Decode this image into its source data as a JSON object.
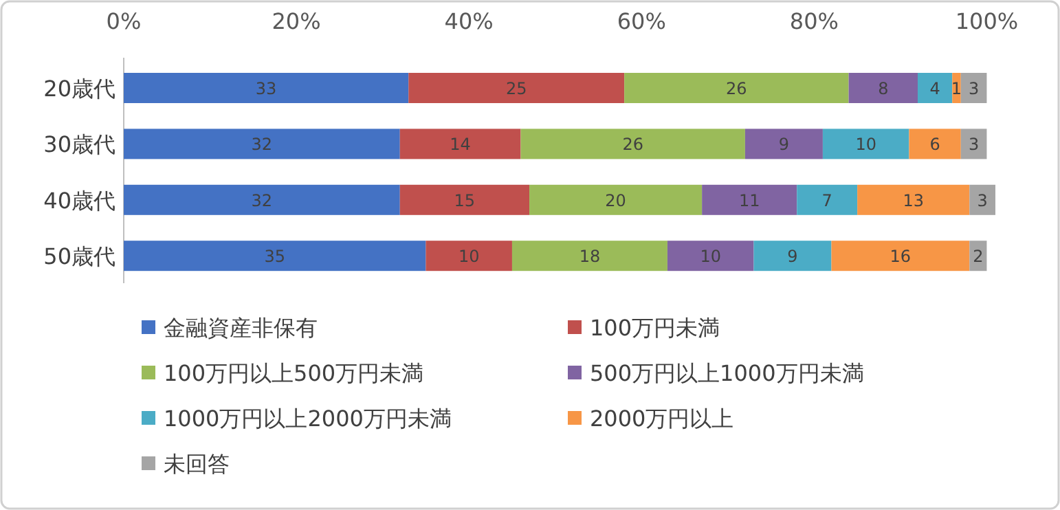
{
  "chart_data": {
    "type": "bar",
    "orientation": "horizontal",
    "stacked": true,
    "data_labels": true,
    "legend": "bottom",
    "grid": false,
    "categories": [
      "20歳代",
      "30歳代",
      "40歳代",
      "50歳代"
    ],
    "xlim": [
      0,
      101
    ],
    "xticks": [
      {
        "value": 0,
        "label": "0%"
      },
      {
        "value": 20,
        "label": "20%"
      },
      {
        "value": 40,
        "label": "40%"
      },
      {
        "value": 60,
        "label": "60%"
      },
      {
        "value": 80,
        "label": "80%"
      },
      {
        "value": 100,
        "label": "100%"
      }
    ],
    "series": [
      {
        "name": "金融資産非保有",
        "color": "#4472c4",
        "values": [
          33,
          32,
          32,
          35
        ]
      },
      {
        "name": "100万円未満",
        "color": "#c0504d",
        "values": [
          25,
          14,
          15,
          10
        ]
      },
      {
        "name": "100万円以上500万円未満",
        "color": "#9bbb59",
        "values": [
          26,
          26,
          20,
          18
        ]
      },
      {
        "name": "500万円以上1000万円未満",
        "color": "#8064a2",
        "values": [
          8,
          9,
          11,
          10
        ]
      },
      {
        "name": "1000万円以上2000万円未満",
        "color": "#4bacc6",
        "values": [
          4,
          10,
          7,
          9
        ]
      },
      {
        "name": "2000万円以上",
        "color": "#f79646",
        "values": [
          1,
          6,
          13,
          16
        ]
      },
      {
        "name": "未回答",
        "color": "#a5a5a5",
        "values": [
          3,
          3,
          3,
          2
        ]
      }
    ]
  }
}
